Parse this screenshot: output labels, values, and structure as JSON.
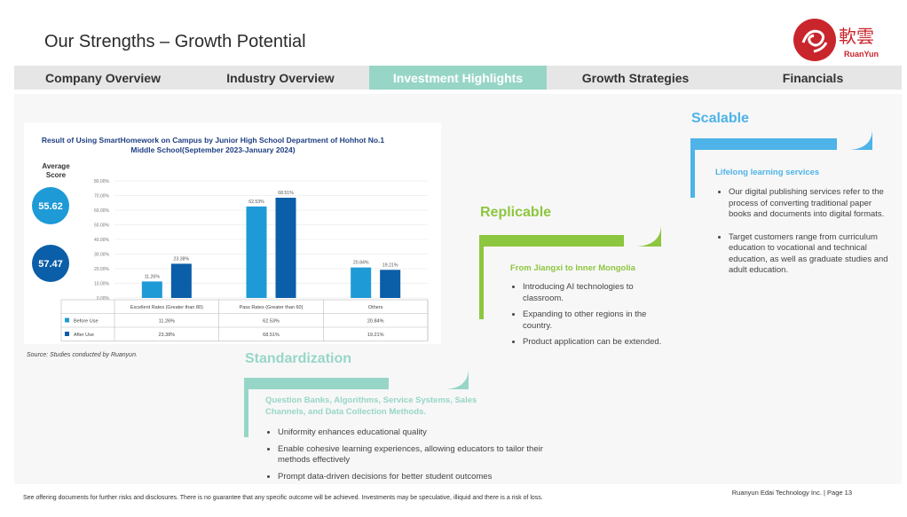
{
  "header": {
    "title": "Our Strengths – Growth Potential"
  },
  "logo": {
    "chinese": "軟雲",
    "english": "RuanYun"
  },
  "nav": {
    "tabs": [
      {
        "label": "Company Overview",
        "active": false
      },
      {
        "label": "Industry Overview",
        "active": false
      },
      {
        "label": "Investment Highlights",
        "active": true
      },
      {
        "label": "Growth Strategies",
        "active": false
      },
      {
        "label": "Financials",
        "active": false
      }
    ]
  },
  "colors": {
    "scalable": "#4db3e8",
    "replicable": "#8dc63f",
    "standardization": "#97d6c7",
    "before": "#1e9ad6",
    "after": "#0b5ea8",
    "active_tab": "#97d6c7"
  },
  "chart_data": {
    "type": "bar",
    "title": "Result of Using SmartHomework on Campus by Junior High School Department of Hohhot No.1 Middle School(September 2023-January 2024)",
    "categories": [
      "Excellent Rates (Greater than 80)",
      "Pass Rates (Greater than 60)",
      "Others"
    ],
    "series": [
      {
        "name": "Before Use",
        "values": [
          11.26,
          62.53,
          20.84
        ],
        "labels": [
          "11.26%",
          "62.53%",
          "20.84%"
        ]
      },
      {
        "name": "After Use",
        "values": [
          23.38,
          68.51,
          19.21
        ],
        "labels": [
          "23.38%",
          "68.51%",
          "19.21%"
        ]
      }
    ],
    "yticks": [
      "0.00%",
      "10.00%",
      "20.00%",
      "30.00%",
      "40.00%",
      "50.00%",
      "60.00%",
      "70.00%",
      "80.00%"
    ],
    "ylim": [
      0,
      80
    ],
    "average_score": {
      "label": "Average Score",
      "values": [
        "55.62",
        "57.47"
      ]
    },
    "legend_position": "table-below"
  },
  "source": "Source: Studies conducted by Ruanyun.",
  "scalable": {
    "title": "Scalable",
    "subtitle": "Lifelong learning services",
    "bullets": [
      "Our digital publishing services refer to the process of converting traditional paper books and documents into digital formats.",
      "Target customers range from curriculum education to vocational and technical education, as well as graduate studies and adult education."
    ]
  },
  "replicable": {
    "title": "Replicable",
    "subtitle": "From Jiangxi to Inner Mongolia",
    "bullets": [
      "Introducing AI technologies to classroom.",
      "Expanding to other regions in the country.",
      "Product application can be extended."
    ]
  },
  "standardization": {
    "title": "Standardization",
    "subtitle": "Question Banks, Algorithms, Service Systems, Sales Channels, and Data Collection Methods.",
    "bullets": [
      "Uniformity enhances educational quality",
      "Enable cohesive learning experiences, allowing educators to tailor their methods effectively",
      "Prompt data-driven decisions for better student outcomes"
    ]
  },
  "footer": {
    "disclaimer": "See offering documents for further risks and disclosures. There is no guarantee that any specific outcome will be achieved. Investments may be speculative, illiquid and there is a risk of loss.",
    "page": "Ruanyun Edai Technology Inc. | Page 13"
  }
}
